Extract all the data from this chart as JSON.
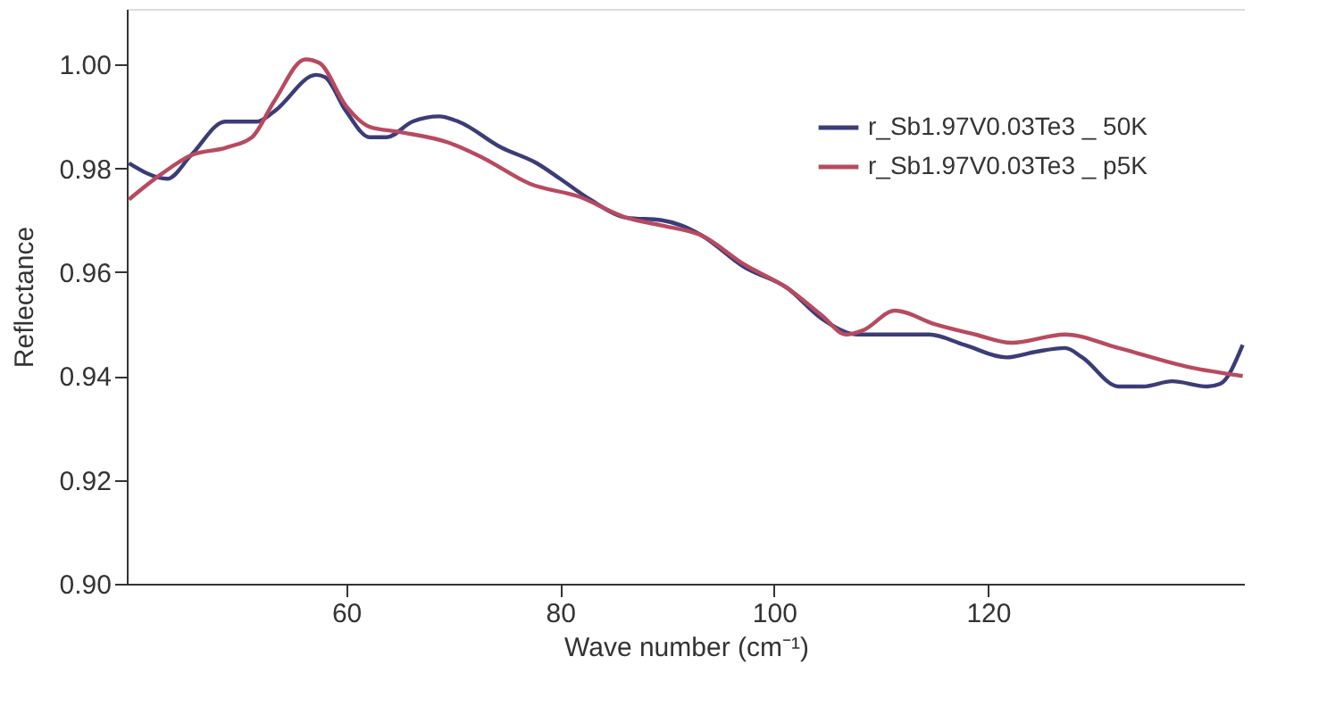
{
  "chart_data": {
    "type": "line",
    "xlabel": "Wave number (cm⁻¹)",
    "ylabel": "Reflectance",
    "xlim": [
      39.5,
      144
    ],
    "xticks": [
      60,
      80,
      100,
      120
    ],
    "ylim": [
      0.9,
      1.0107
    ],
    "yticks": [
      {
        "value": 0.9,
        "label": "0.90"
      },
      0.92,
      0.94,
      0.96,
      0.98,
      {
        "value": 1.0,
        "label": "1.00"
      }
    ],
    "grid": false,
    "legend": "top right",
    "line_style": "solid",
    "marker": "none",
    "series": [
      {
        "name": "r_Sb1.97V0.03Te3 _ 50K",
        "color": "#3c3c78",
        "x": [
          39.7,
          43.3,
          45.5,
          48.7,
          51.7,
          53.3,
          57.2,
          58.0,
          60.0,
          62.2,
          63.8,
          66.2,
          68.7,
          70.5,
          74.5,
          77.8,
          80.0,
          82.8,
          86.2,
          89.5,
          91.7,
          93.3,
          97.2,
          101.2,
          104.5,
          107.8,
          112.2,
          114.5,
          117.8,
          121.7,
          124.5,
          127.2,
          128.8,
          132.2,
          134.5,
          137.2,
          140.5,
          141.7,
          143.8
        ],
        "values": [
          0.981,
          0.978,
          0.9825,
          0.989,
          0.989,
          0.991,
          0.998,
          0.9976,
          0.991,
          0.986,
          0.986,
          0.989,
          0.99,
          0.989,
          0.984,
          0.981,
          0.978,
          0.974,
          0.9705,
          0.97,
          0.9687,
          0.967,
          0.961,
          0.957,
          0.951,
          0.948,
          0.948,
          0.948,
          0.946,
          0.9436,
          0.9447,
          0.9454,
          0.9436,
          0.938,
          0.938,
          0.939,
          0.938,
          0.9385,
          0.946
        ]
      },
      {
        "name": "r_Sb1.97V0.03Te3 _ p5K",
        "color": "#b84a60",
        "x": [
          39.7,
          42.8,
          45.5,
          48.8,
          51.2,
          53.3,
          56.2,
          57.5,
          60.0,
          62.2,
          65.0,
          69.5,
          72.8,
          77.2,
          81.7,
          86.2,
          89.5,
          93.3,
          97.2,
          101.2,
          104.5,
          106.7,
          108.3,
          111.3,
          115.0,
          118.8,
          122.2,
          127.2,
          132.2,
          138.8,
          143.8
        ],
        "values": [
          0.974,
          0.979,
          0.9825,
          0.984,
          0.986,
          0.993,
          1.001,
          1.0003,
          0.992,
          0.988,
          0.987,
          0.985,
          0.982,
          0.977,
          0.9746,
          0.9705,
          0.969,
          0.967,
          0.9615,
          0.957,
          0.9516,
          0.948,
          0.9488,
          0.9526,
          0.95,
          0.948,
          0.9464,
          0.948,
          0.9454,
          0.9417,
          0.94
        ]
      }
    ]
  }
}
